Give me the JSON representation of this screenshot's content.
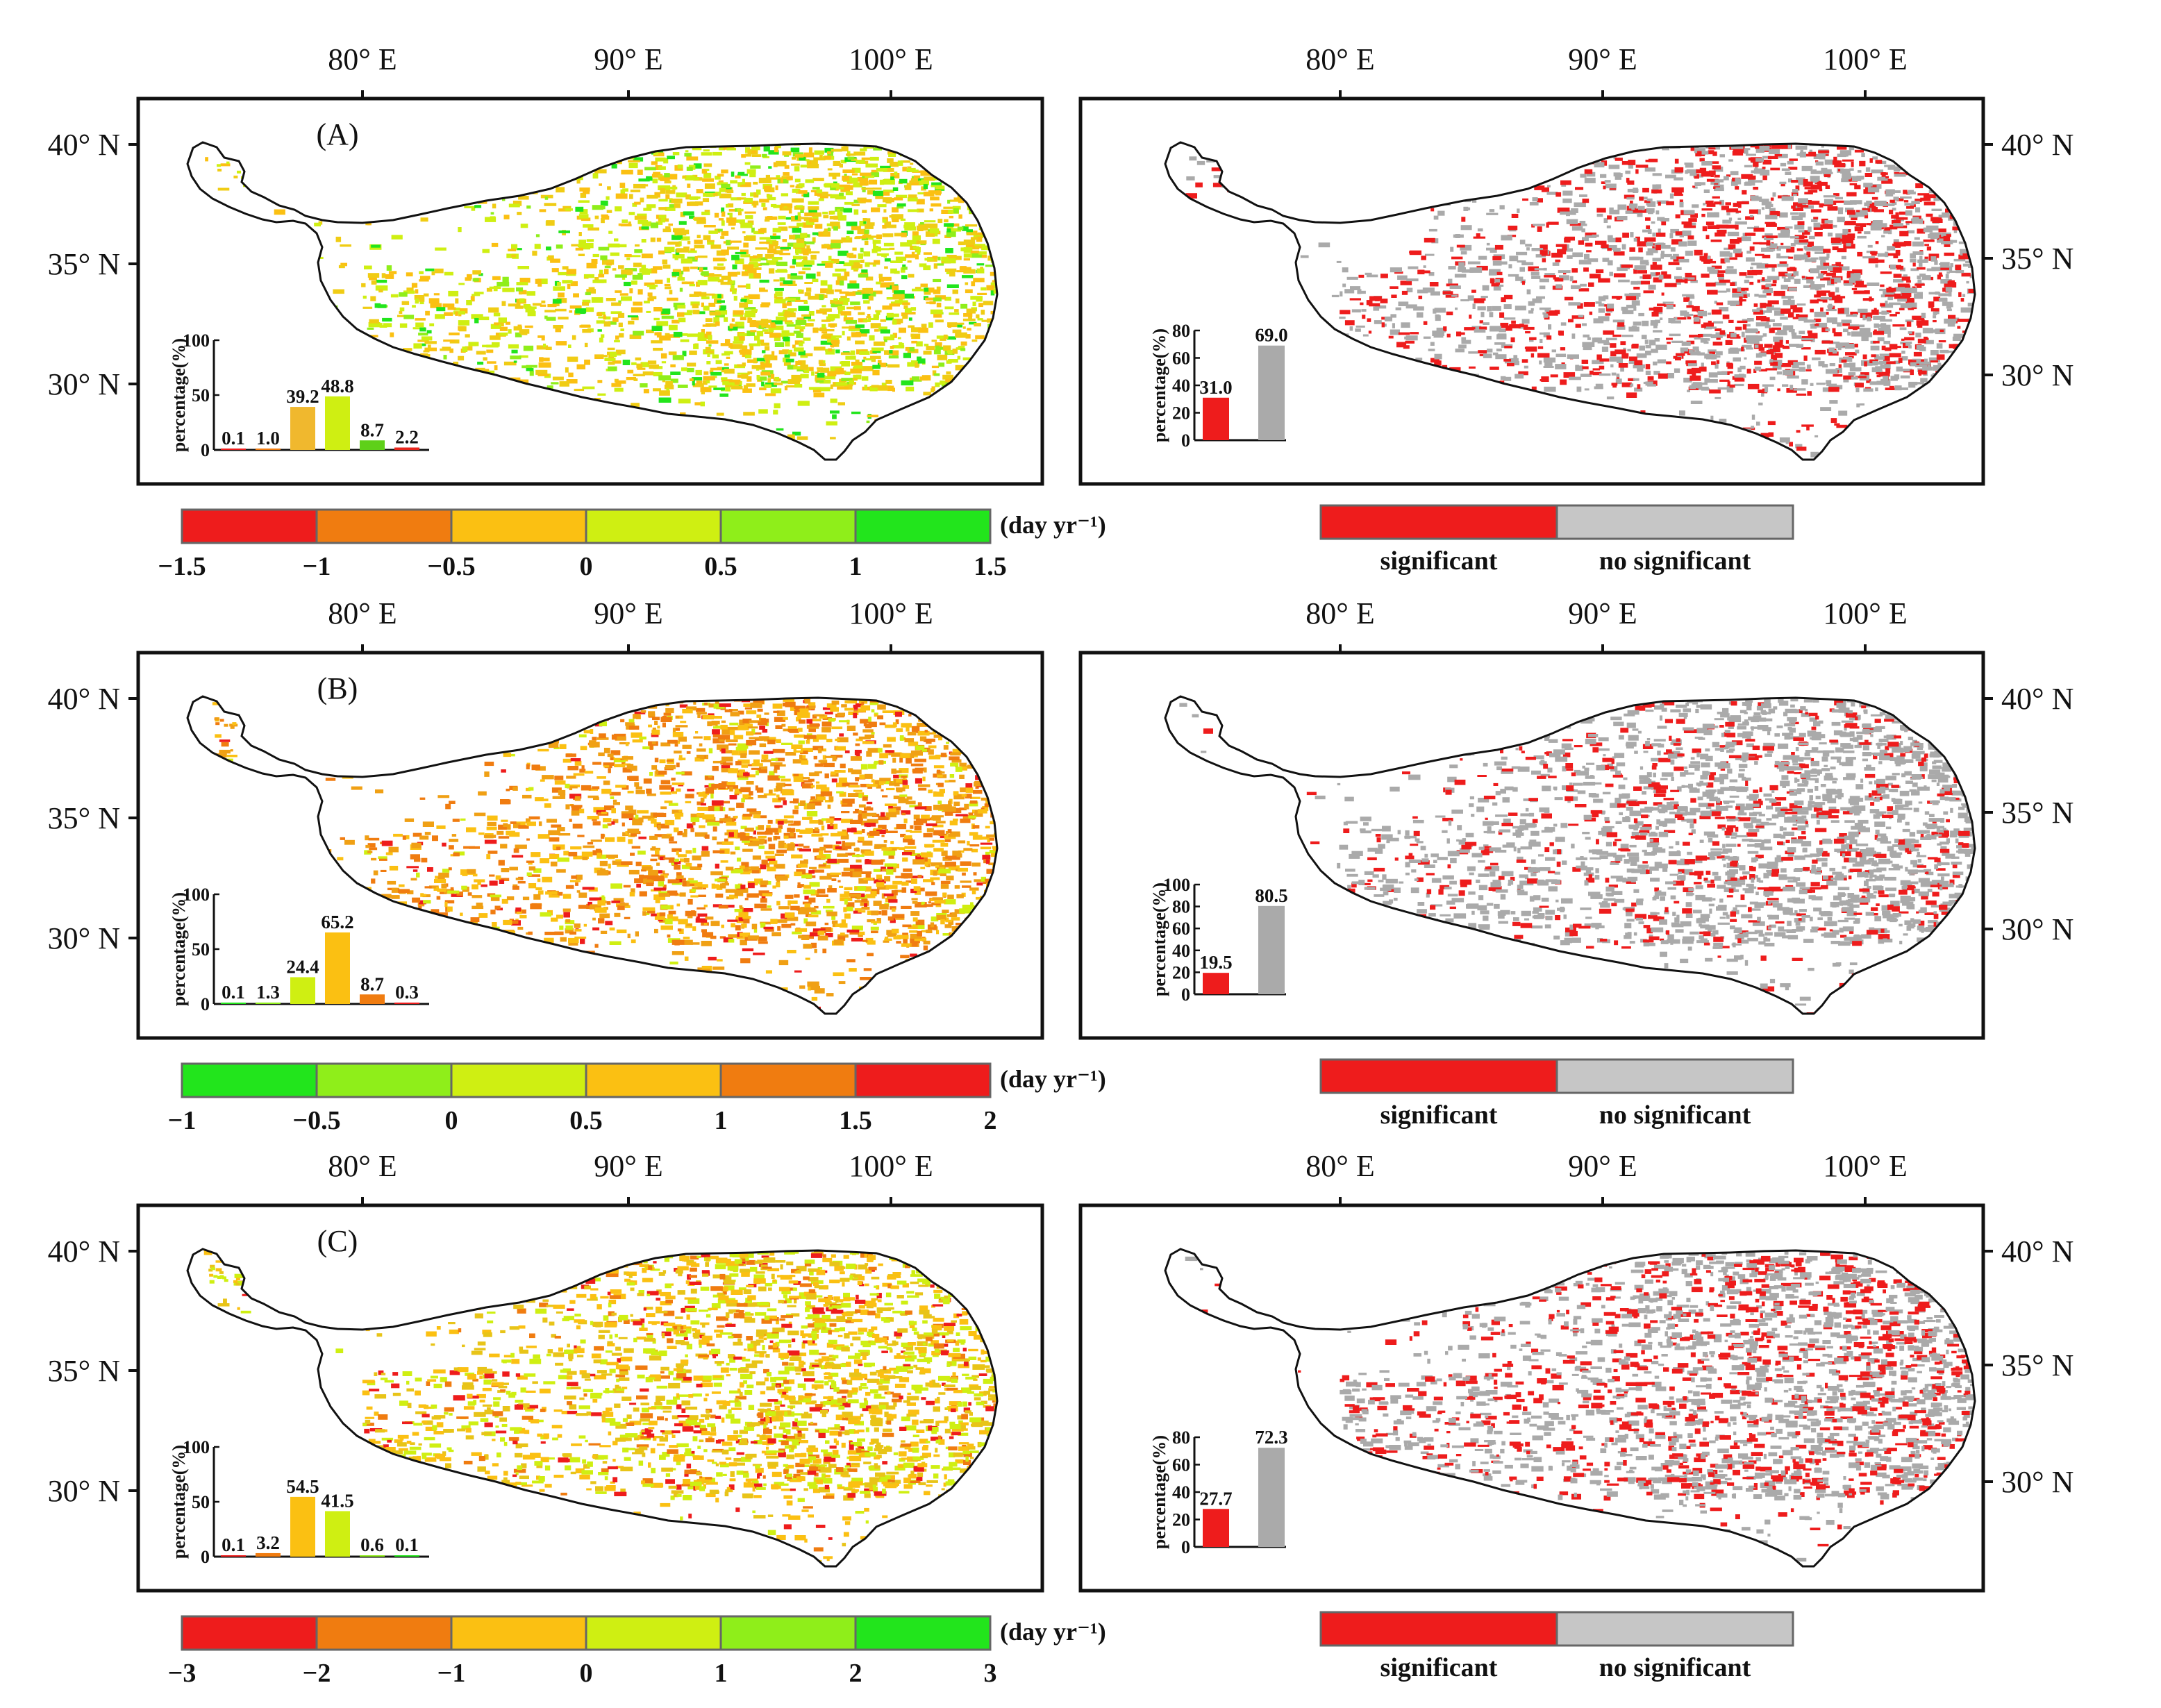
{
  "figure": {
    "lon_labels": [
      "80° E",
      "90° E",
      "100° E"
    ],
    "lat_labels": [
      "40° N",
      "35° N",
      "30° N"
    ],
    "inset_ylabel": "percentage(%)",
    "unit_label": "(day yr⁻¹)",
    "legend_significant": "significant",
    "legend_no_significant": "no significant",
    "colors": {
      "red": "#ee1c1c",
      "orange": "#f07c10",
      "amber": "#fbc012",
      "lime": "#cfef12",
      "green1": "#8fee1a",
      "green2": "#22e51c",
      "gray": "#aaaaaa",
      "light_gray": "#c6c6c6"
    }
  },
  "rows": [
    {
      "label": "(A)",
      "trend_chart": {
        "type": "bar",
        "ylim": [
          0,
          100
        ],
        "yticks": [
          "0",
          "50",
          "100"
        ],
        "values": [
          0.1,
          1.0,
          39.2,
          48.8,
          8.7,
          2.2
        ],
        "value_labels": [
          "0.1",
          "1.0",
          "39.2",
          "48.8",
          "8.7",
          "2.2"
        ],
        "colors": [
          "#ee1c1c",
          "#f07c10",
          "#f0b82e",
          "#cfef12",
          "#5ed019",
          "#e8251c"
        ]
      },
      "colorbar": {
        "ticks": [
          "−1.5",
          "−1",
          "−0.5",
          "0",
          "0.5",
          "1",
          "1.5"
        ],
        "colors": [
          "#ee1c1c",
          "#f07c10",
          "#fbc012",
          "#cfef12",
          "#8fee1a",
          "#22e51c"
        ]
      },
      "sig_chart": {
        "type": "bar",
        "ylim": [
          0,
          80
        ],
        "yticks": [
          "0",
          "20",
          "40",
          "60",
          "80"
        ],
        "categories": [
          "significant",
          "no significant"
        ],
        "values": [
          31.0,
          69.0
        ],
        "value_labels": [
          "31.0",
          "69.0"
        ]
      },
      "map_mix": {
        "dominant": [
          "#fbc012",
          "#f0cc14",
          "#cfef12"
        ],
        "minor": [
          "#8fee1a",
          "#22e51c"
        ],
        "sig_ratio": 0.42
      }
    },
    {
      "label": "(B)",
      "trend_chart": {
        "type": "bar",
        "ylim": [
          0,
          100
        ],
        "yticks": [
          "0",
          "50",
          "100"
        ],
        "values": [
          0.1,
          1.3,
          24.4,
          65.2,
          8.7,
          0.3
        ],
        "value_labels": [
          "0.1",
          "1.3",
          "24.4",
          "65.2",
          "8.7",
          "0.3"
        ],
        "colors": [
          "#22e51c",
          "#8fee1a",
          "#cfef12",
          "#fbc012",
          "#f07c10",
          "#ee1c1c"
        ]
      },
      "colorbar": {
        "ticks": [
          "−1",
          "−0.5",
          "0",
          "0.5",
          "1",
          "1.5",
          "2"
        ],
        "colors": [
          "#22e51c",
          "#8fee1a",
          "#cfef12",
          "#fbc012",
          "#f07c10",
          "#ee1c1c"
        ]
      },
      "sig_chart": {
        "type": "bar",
        "ylim": [
          0,
          100
        ],
        "yticks": [
          "0",
          "20",
          "40",
          "60",
          "80",
          "100"
        ],
        "categories": [
          "significant",
          "no significant"
        ],
        "values": [
          19.5,
          80.5
        ],
        "value_labels": [
          "19.5",
          "80.5"
        ]
      },
      "map_mix": {
        "dominant": [
          "#fbc012",
          "#f0a014",
          "#f07c10"
        ],
        "minor": [
          "#cfef12",
          "#ee1c1c"
        ],
        "sig_ratio": 0.25
      }
    },
    {
      "label": "(C)",
      "trend_chart": {
        "type": "bar",
        "ylim": [
          0,
          100
        ],
        "yticks": [
          "0",
          "50",
          "100"
        ],
        "values": [
          0.1,
          3.2,
          54.5,
          41.5,
          0.6,
          0.1
        ],
        "value_labels": [
          "0.1",
          "3.2",
          "54.5",
          "41.5",
          "0.6",
          "0.1"
        ],
        "colors": [
          "#ee1c1c",
          "#f07c10",
          "#fbc012",
          "#cfef12",
          "#8fee1a",
          "#22e51c"
        ]
      },
      "colorbar": {
        "ticks": [
          "−3",
          "−2",
          "−1",
          "0",
          "1",
          "2",
          "3"
        ],
        "colors": [
          "#ee1c1c",
          "#f07c10",
          "#fbc012",
          "#cfef12",
          "#8fee1a",
          "#22e51c"
        ]
      },
      "sig_chart": {
        "type": "bar",
        "ylim": [
          0,
          80
        ],
        "yticks": [
          "0",
          "20",
          "40",
          "60",
          "80"
        ],
        "categories": [
          "significant",
          "no significant"
        ],
        "values": [
          27.7,
          72.3
        ],
        "value_labels": [
          "27.7",
          "72.3"
        ]
      },
      "map_mix": {
        "dominant": [
          "#fbc012",
          "#e8c418",
          "#cfef12"
        ],
        "minor": [
          "#f07c10",
          "#ee1c1c"
        ],
        "sig_ratio": 0.36
      }
    }
  ]
}
